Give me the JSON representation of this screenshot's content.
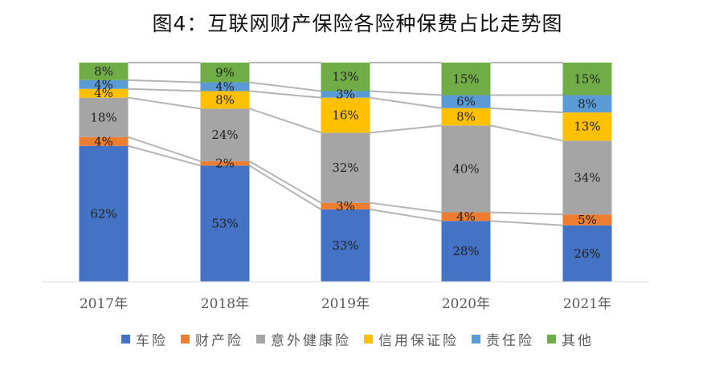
{
  "chart_data": {
    "type": "bar",
    "stacked": true,
    "percent": true,
    "title": "图4：互联网财产保险各险种保费占比走势图",
    "categories": [
      "2017年",
      "2018年",
      "2019年",
      "2020年",
      "2021年"
    ],
    "series": [
      {
        "name": "车险",
        "color": "#4472C4",
        "values": [
          62,
          53,
          33,
          28,
          26
        ]
      },
      {
        "name": "财产险",
        "color": "#ED7D31",
        "values": [
          4,
          2,
          3,
          4,
          5
        ]
      },
      {
        "name": "意外健康险",
        "color": "#A5A5A5",
        "values": [
          18,
          24,
          32,
          40,
          34
        ]
      },
      {
        "name": "信用保证险",
        "color": "#FFC000",
        "values": [
          4,
          8,
          16,
          8,
          13
        ]
      },
      {
        "name": "责任险",
        "color": "#5B9BD5",
        "values": [
          4,
          4,
          3,
          6,
          8
        ]
      },
      {
        "name": "其他",
        "color": "#70AD47",
        "values": [
          8,
          9,
          13,
          15,
          15
        ]
      }
    ],
    "series_lines": true,
    "legend": "bottom",
    "grid": false
  }
}
